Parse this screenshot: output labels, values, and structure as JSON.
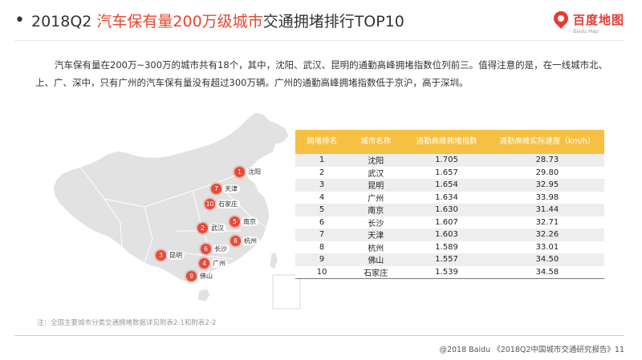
{
  "header": {
    "bullet": "•",
    "title_prefix": "2018Q2 ",
    "title_highlight": "汽车保有量200万级城市",
    "title_suffix": "交通拥堵排行TOP10"
  },
  "logo": {
    "name": "百度地图",
    "tagline": "Baidu Map"
  },
  "intro": {
    "text": "汽车保有量在200万~300万的城市共有18个，其中，沈阳、武汉、昆明的通勤高峰拥堵指数位列前三。值得注意的是，在一线城市北、上、广、深中，只有广州的汽车保有量没有超过300万辆。广州的通勤高峰拥堵指数低于京沪，高于深圳。"
  },
  "map": {
    "markers": [
      {
        "rank": "1",
        "city": "沈阳"
      },
      {
        "rank": "7",
        "city": "天津"
      },
      {
        "rank": "10",
        "city": "石家庄"
      },
      {
        "rank": "5",
        "city": "南京"
      },
      {
        "rank": "2",
        "city": "武汉"
      },
      {
        "rank": "8",
        "city": "杭州"
      },
      {
        "rank": "6",
        "city": "长沙"
      },
      {
        "rank": "3",
        "city": "昆明"
      },
      {
        "rank": "4",
        "city": "广州"
      },
      {
        "rank": "9",
        "city": "佛山"
      }
    ],
    "colors": {
      "land": "#e2e2e2",
      "border": "#ffffff",
      "marker": "#e84a3a"
    }
  },
  "table": {
    "headers": [
      "拥堵排名",
      "城市名称",
      "通勤高峰拥堵指数",
      "通勤高峰实际速度（km/h）"
    ],
    "rows": [
      {
        "rank": "1",
        "city": "沈阳",
        "index": "1.705",
        "speed": "28.73"
      },
      {
        "rank": "2",
        "city": "武汉",
        "index": "1.657",
        "speed": "29.80"
      },
      {
        "rank": "3",
        "city": "昆明",
        "index": "1.654",
        "speed": "32.95"
      },
      {
        "rank": "4",
        "city": "广州",
        "index": "1.634",
        "speed": "33.98"
      },
      {
        "rank": "5",
        "city": "南京",
        "index": "1.630",
        "speed": "31.44"
      },
      {
        "rank": "6",
        "city": "长沙",
        "index": "1.607",
        "speed": "32.71"
      },
      {
        "rank": "7",
        "city": "天津",
        "index": "1.603",
        "speed": "32.26"
      },
      {
        "rank": "8",
        "city": "杭州",
        "index": "1.589",
        "speed": "33.01"
      },
      {
        "rank": "9",
        "city": "佛山",
        "index": "1.557",
        "speed": "34.50"
      },
      {
        "rank": "10",
        "city": "石家庄",
        "index": "1.539",
        "speed": "34.58"
      }
    ],
    "colors": {
      "header": "#f6c043",
      "stripe": "#eeeeee"
    }
  },
  "footnote": "注：全国主要城市分类交通拥堵数据详见附表2-1和附表2-2",
  "footer": "@2018 Baidu 《2018Q2中国城市交通研究报告》11",
  "colors": {
    "accent": "#e8482f"
  }
}
